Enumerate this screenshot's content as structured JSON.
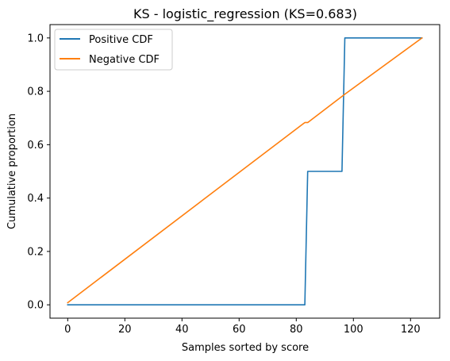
{
  "chart_data": {
    "type": "line",
    "title": "KS - logistic_regression (KS=0.683)",
    "xlabel": "Samples sorted by score",
    "ylabel": "Cumulative proportion",
    "xlim": [
      -6.2,
      130.2
    ],
    "ylim": [
      -0.05,
      1.05
    ],
    "xticks": [
      0,
      20,
      40,
      60,
      80,
      100,
      120
    ],
    "yticks": [
      0.0,
      0.2,
      0.4,
      0.6,
      0.8,
      1.0
    ],
    "xtick_labels": [
      "0",
      "20",
      "40",
      "60",
      "80",
      "100",
      "120"
    ],
    "ytick_labels": [
      "0.0",
      "0.2",
      "0.4",
      "0.6",
      "0.8",
      "1.0"
    ],
    "grid": false,
    "legend_position": "top-left",
    "series": [
      {
        "name": "Positive CDF",
        "color": "#1f77b4",
        "x": [
          0,
          83,
          84,
          96,
          97,
          124
        ],
        "y": [
          0,
          0,
          0.5,
          0.5,
          1.0,
          1.0
        ]
      },
      {
        "name": "Negative CDF",
        "color": "#ff7f0e",
        "x": [
          0,
          83,
          84,
          96,
          97,
          124
        ],
        "y": [
          0.008,
          0.683,
          0.683,
          0.781,
          0.789,
          1.0
        ]
      }
    ]
  }
}
